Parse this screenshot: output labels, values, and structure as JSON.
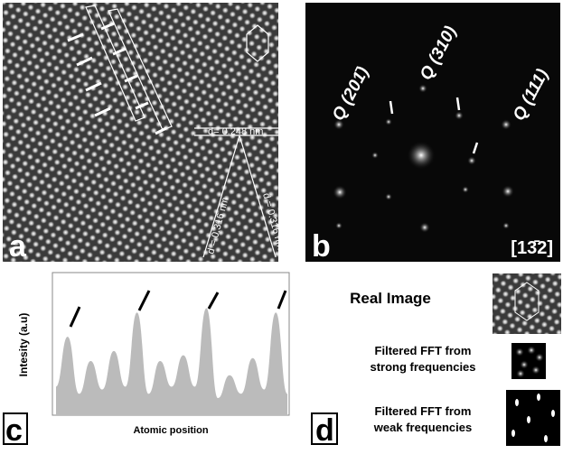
{
  "panel_a": {
    "label": "a",
    "spacing_h": "d= 0.248 nm",
    "spacing_left": "d = 0.316 nm",
    "spacing_right": "d = 0.316 nm"
  },
  "panel_b": {
    "label": "b",
    "spot_1": "Q (201̄)",
    "spot_2": "Q (310)",
    "spot_3": "Q (111)",
    "zone_axis": "[13̄2]"
  },
  "panel_c": {
    "label": "c",
    "y_label": "Intesity (a.u)",
    "x_label": "Atomic position",
    "profile": [
      20,
      55,
      15,
      38,
      18,
      45,
      20,
      72,
      15,
      38,
      20,
      42,
      20,
      75,
      12,
      28,
      15,
      40,
      18,
      72,
      15
    ]
  },
  "panel_d": {
    "label": "d",
    "real_image": "Real Image",
    "strong_line1": "Filtered FFT from",
    "strong_line2": "strong frequencies",
    "weak_line1": "Filtered FFT from",
    "weak_line2": "weak frequencies"
  }
}
